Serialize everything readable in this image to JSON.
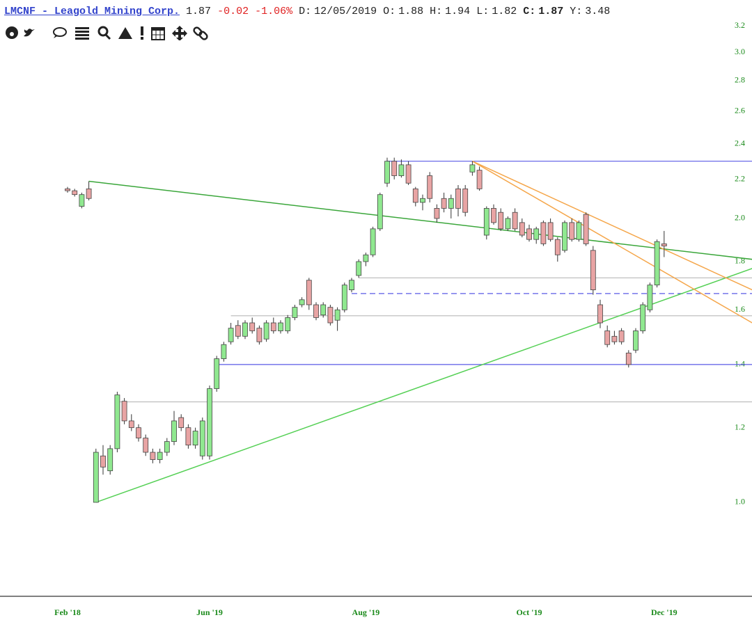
{
  "header": {
    "symbol": "LMCNF - Leagold Mining Corp.",
    "last": "1.87",
    "change": "-0.02",
    "change_pct": "-1.06%",
    "fields": [
      {
        "label": "D:",
        "value": "12/05/2019"
      },
      {
        "label": "O:",
        "value": "1.88"
      },
      {
        "label": "H:",
        "value": "1.94"
      },
      {
        "label": "L:",
        "value": "1.82"
      },
      {
        "label": "C:",
        "value": "1.87",
        "bold": true
      },
      {
        "label": "Y:",
        "value": "3.48"
      }
    ]
  },
  "chart_data": {
    "type": "candlestick",
    "log_scale": true,
    "up_color": "#90e890",
    "down_color": "#e8a4a4",
    "ylim": [
      0.795,
      3.24
    ],
    "yticks": [
      {
        "value": 1,
        "label": "1.0"
      },
      1.2,
      1.4,
      1.6,
      1.8,
      {
        "value": 2,
        "label": "2.0"
      },
      2.2,
      2.4,
      2.6,
      2.8,
      {
        "value": 3,
        "label": "3.0"
      },
      3.2
    ],
    "categories": [
      "Feb '18",
      null,
      null,
      null,
      null,
      null,
      null,
      null,
      null,
      null,
      null,
      null,
      null,
      null,
      null,
      null,
      null,
      null,
      null,
      null,
      "Jun '19",
      null,
      null,
      null,
      null,
      null,
      null,
      null,
      null,
      null,
      null,
      null,
      null,
      null,
      null,
      null,
      null,
      null,
      null,
      null,
      null,
      null,
      "Aug '19",
      null,
      null,
      null,
      null,
      null,
      null,
      null,
      null,
      null,
      null,
      null,
      null,
      null,
      null,
      null,
      null,
      null,
      null,
      null,
      null,
      null,
      null,
      "Oct '19",
      null,
      null,
      null,
      null,
      null,
      null,
      null,
      null,
      null,
      null,
      null,
      null,
      null,
      null,
      null,
      null,
      null,
      null,
      "Dec '19"
    ],
    "ohlc": [
      [
        2.15,
        2.16,
        2.13,
        2.14
      ],
      [
        2.14,
        2.15,
        2.11,
        2.12
      ],
      [
        2.06,
        2.13,
        2.05,
        2.12
      ],
      [
        2.15,
        2.19,
        2.09,
        2.1
      ],
      [
        1.0,
        1.14,
        1.0,
        1.13
      ],
      [
        1.12,
        1.15,
        1.07,
        1.09
      ],
      [
        1.08,
        1.15,
        1.07,
        1.14
      ],
      [
        1.14,
        1.31,
        1.13,
        1.3
      ],
      [
        1.28,
        1.29,
        1.21,
        1.22
      ],
      [
        1.22,
        1.24,
        1.19,
        1.2
      ],
      [
        1.2,
        1.21,
        1.16,
        1.17
      ],
      [
        1.17,
        1.18,
        1.12,
        1.13
      ],
      [
        1.13,
        1.14,
        1.1,
        1.11
      ],
      [
        1.11,
        1.14,
        1.1,
        1.13
      ],
      [
        1.13,
        1.17,
        1.12,
        1.16
      ],
      [
        1.16,
        1.25,
        1.15,
        1.22
      ],
      [
        1.23,
        1.24,
        1.19,
        1.2
      ],
      [
        1.2,
        1.21,
        1.14,
        1.15
      ],
      [
        1.15,
        1.2,
        1.14,
        1.19
      ],
      [
        1.12,
        1.23,
        1.11,
        1.22
      ],
      [
        1.12,
        1.33,
        1.11,
        1.32
      ],
      [
        1.32,
        1.43,
        1.31,
        1.42
      ],
      [
        1.42,
        1.48,
        1.41,
        1.47
      ],
      [
        1.48,
        1.55,
        1.47,
        1.53
      ],
      [
        1.54,
        1.56,
        1.49,
        1.5
      ],
      [
        1.5,
        1.56,
        1.49,
        1.55
      ],
      [
        1.55,
        1.57,
        1.51,
        1.52
      ],
      [
        1.53,
        1.54,
        1.47,
        1.48
      ],
      [
        1.49,
        1.56,
        1.48,
        1.55
      ],
      [
        1.55,
        1.57,
        1.51,
        1.52
      ],
      [
        1.52,
        1.56,
        1.51,
        1.55
      ],
      [
        1.52,
        1.58,
        1.51,
        1.57
      ],
      [
        1.57,
        1.62,
        1.56,
        1.61
      ],
      [
        1.62,
        1.65,
        1.61,
        1.64
      ],
      [
        1.72,
        1.73,
        1.6,
        1.62
      ],
      [
        1.62,
        1.63,
        1.56,
        1.57
      ],
      [
        1.58,
        1.63,
        1.57,
        1.62
      ],
      [
        1.61,
        1.62,
        1.54,
        1.55
      ],
      [
        1.56,
        1.61,
        1.52,
        1.6
      ],
      [
        1.6,
        1.71,
        1.59,
        1.7
      ],
      [
        1.68,
        1.73,
        1.67,
        1.72
      ],
      [
        1.74,
        1.81,
        1.73,
        1.8
      ],
      [
        1.8,
        1.84,
        1.78,
        1.83
      ],
      [
        1.83,
        1.96,
        1.82,
        1.95
      ],
      [
        1.95,
        2.13,
        1.94,
        2.12
      ],
      [
        2.18,
        2.32,
        2.16,
        2.3
      ],
      [
        2.3,
        2.32,
        2.2,
        2.22
      ],
      [
        2.22,
        2.31,
        2.21,
        2.28
      ],
      [
        2.28,
        2.3,
        2.17,
        2.18
      ],
      [
        2.15,
        2.16,
        2.06,
        2.08
      ],
      [
        2.08,
        2.12,
        2.04,
        2.1
      ],
      [
        2.22,
        2.24,
        2.08,
        2.1
      ],
      [
        2.05,
        2.07,
        1.98,
        2.0
      ],
      [
        2.1,
        2.13,
        2.03,
        2.05
      ],
      [
        2.05,
        2.12,
        2.0,
        2.1
      ],
      [
        2.15,
        2.17,
        2.01,
        2.05
      ],
      [
        2.15,
        2.17,
        2.01,
        2.03
      ],
      [
        2.24,
        2.3,
        2.22,
        2.28
      ],
      [
        2.25,
        2.27,
        2.14,
        2.15
      ],
      [
        1.92,
        2.06,
        1.9,
        2.05
      ],
      [
        2.05,
        2.07,
        1.97,
        1.98
      ],
      [
        2.03,
        2.05,
        1.94,
        1.95
      ],
      [
        1.95,
        2.01,
        1.94,
        2.0
      ],
      [
        2.03,
        2.05,
        1.94,
        1.95
      ],
      [
        1.98,
        2.0,
        1.91,
        1.92
      ],
      [
        1.95,
        1.97,
        1.89,
        1.9
      ],
      [
        1.9,
        1.96,
        1.88,
        1.95
      ],
      [
        1.98,
        1.99,
        1.87,
        1.88
      ],
      [
        1.98,
        2.0,
        1.89,
        1.9
      ],
      [
        1.9,
        1.91,
        1.8,
        1.83
      ],
      [
        1.85,
        1.99,
        1.84,
        1.98
      ],
      [
        1.98,
        2.0,
        1.89,
        1.9
      ],
      [
        1.9,
        1.99,
        1.89,
        1.98
      ],
      [
        2.02,
        2.03,
        1.87,
        1.88
      ],
      [
        1.85,
        1.87,
        1.66,
        1.68
      ],
      [
        1.62,
        1.64,
        1.53,
        1.55
      ],
      [
        1.52,
        1.54,
        1.46,
        1.47
      ],
      [
        1.5,
        1.52,
        1.47,
        1.48
      ],
      [
        1.52,
        1.53,
        1.47,
        1.48
      ],
      [
        1.44,
        1.45,
        1.39,
        1.4
      ],
      [
        1.45,
        1.53,
        1.44,
        1.52
      ],
      [
        1.52,
        1.63,
        1.51,
        1.62
      ],
      [
        1.6,
        1.71,
        1.59,
        1.7
      ],
      [
        1.7,
        1.9,
        1.69,
        1.89
      ],
      [
        1.88,
        1.94,
        1.82,
        1.87
      ]
    ],
    "hlines": [
      {
        "value": 2.3,
        "from": 45,
        "color": "#5a5ae6"
      },
      {
        "value": 1.73,
        "from": 41,
        "color": "#b8b8b8"
      },
      {
        "value": 1.665,
        "from": 40,
        "color": "#5a5ae6",
        "dashed": true
      },
      {
        "value": 1.577,
        "from": 23,
        "color": "#b8b8b8"
      },
      {
        "value": 1.4,
        "from": 21,
        "color": "#5a5ae6"
      },
      {
        "value": 1.278,
        "from": 7,
        "color": "#b8b8b8"
      }
    ],
    "lines": [
      {
        "x": [
          3,
          96.4
        ],
        "y": [
          2.19,
          1.81
        ],
        "color": "#3aa63a"
      },
      {
        "x": [
          4,
          96.4
        ],
        "y": [
          1.0,
          1.77
        ],
        "color": "#55d055"
      },
      {
        "x": [
          57,
          96.4
        ],
        "y": [
          2.3,
          1.68
        ],
        "color": "#f5a64a"
      },
      {
        "x": [
          57,
          96.4
        ],
        "y": [
          2.3,
          1.55
        ],
        "color": "#f5a64a"
      }
    ]
  }
}
